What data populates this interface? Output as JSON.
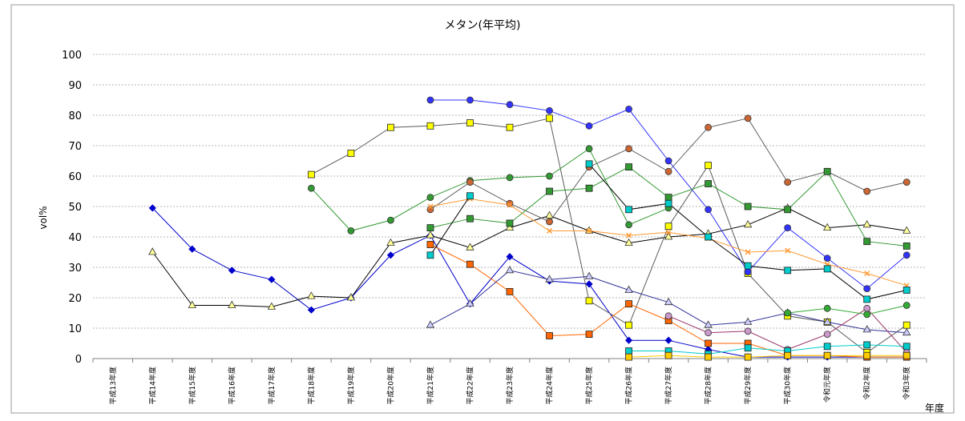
{
  "chart_data": {
    "type": "line",
    "title": "メタン(年平均)",
    "ylabel": "vol%",
    "xlabel": "年度",
    "ylim": [
      0,
      100
    ],
    "yticks": [
      0,
      10,
      20,
      30,
      40,
      50,
      60,
      70,
      80,
      90,
      100
    ],
    "grid": true,
    "categories": [
      "平成13年度",
      "平成14年度",
      "平成15年度",
      "平成16年度",
      "平成17年度",
      "平成18年度",
      "平成19年度",
      "平成20年度",
      "平成21年度",
      "平成22年度",
      "平成23年度",
      "平成24年度",
      "平成25年度",
      "平成26年度",
      "平成27年度",
      "平成28年度",
      "平成29年度",
      "平成30年度",
      "令和元年度",
      "令和2年度",
      "令和3年度"
    ],
    "series": [
      {
        "color": "#0000cc",
        "marker": "diamond",
        "fill": "#0000cc",
        "values": [
          null,
          49.5,
          36,
          29,
          26,
          16,
          20,
          34,
          40.5,
          18,
          33.5,
          25.5,
          24.5,
          6,
          6,
          3,
          0.5,
          0.5,
          0.5,
          0.5,
          0.5
        ]
      },
      {
        "color": "#000000",
        "marker": "triangle",
        "fill": "#ffff99",
        "values": [
          null,
          35,
          17.5,
          17.5,
          17,
          20.5,
          20,
          38,
          40.5,
          36.5,
          43,
          47,
          42,
          38,
          40,
          41,
          44,
          49.5,
          43,
          44,
          42
        ]
      },
      {
        "color": "#5a5a5a",
        "marker": "square",
        "fill": "#ffff00",
        "values": [
          null,
          null,
          null,
          null,
          null,
          60.5,
          67.5,
          76,
          76.5,
          77.5,
          76,
          79,
          19,
          11,
          43.5,
          63.5,
          28,
          14,
          12,
          2,
          11
        ]
      },
      {
        "color": "#339933",
        "marker": "circle",
        "fill": "#339933",
        "values": [
          null,
          null,
          null,
          null,
          null,
          56,
          42,
          45.5,
          53,
          58.5,
          59.5,
          60,
          69,
          44,
          49.5,
          null,
          null,
          null,
          null,
          null,
          null
        ]
      },
      {
        "color": "#3333ff",
        "marker": "circle",
        "fill": "#3333ff",
        "values": [
          null,
          null,
          null,
          null,
          null,
          null,
          null,
          null,
          85,
          85,
          83.5,
          81.5,
          76.5,
          82,
          65,
          49,
          28.5,
          43,
          33,
          23,
          34
        ]
      },
      {
        "color": "#606060",
        "marker": "circle",
        "fill": "#cc6633",
        "values": [
          null,
          null,
          null,
          null,
          null,
          null,
          null,
          null,
          49,
          58,
          51,
          45,
          63,
          69,
          61.5,
          76,
          79,
          58,
          61.5,
          55,
          58
        ]
      },
      {
        "color": "#ff6600",
        "marker": "square",
        "fill": "#ff6600",
        "values": [
          null,
          null,
          null,
          null,
          null,
          null,
          null,
          null,
          37.5,
          31,
          22,
          7.5,
          8,
          18,
          12.5,
          5,
          5,
          1,
          1,
          0.5,
          0.5
        ]
      },
      {
        "color": "#ff9933",
        "marker": "x",
        "fill": "#ff9933",
        "values": [
          null,
          null,
          null,
          null,
          null,
          null,
          null,
          null,
          50,
          52.5,
          50.5,
          42,
          42,
          40.5,
          41.5,
          39.5,
          35,
          35.5,
          31,
          28,
          24
        ]
      },
      {
        "color": "#339933",
        "marker": "square",
        "fill": "#339933",
        "values": [
          null,
          null,
          null,
          null,
          null,
          null,
          null,
          null,
          43,
          46,
          44.5,
          55,
          56,
          63,
          53,
          57.5,
          50,
          49,
          61.5,
          38.5,
          37
        ]
      },
      {
        "color": "#000000",
        "marker": "square",
        "fill": "#00cccc",
        "values": [
          null,
          null,
          null,
          null,
          null,
          null,
          null,
          null,
          34,
          53.5,
          null,
          null,
          64,
          49,
          51,
          40,
          30.5,
          29,
          29.5,
          19.5,
          22.5
        ]
      },
      {
        "color": "#333399",
        "marker": "triangle",
        "fill": "#ccccff",
        "values": [
          null,
          null,
          null,
          null,
          null,
          null,
          null,
          null,
          11,
          18,
          29,
          26,
          27,
          22.5,
          18.5,
          11,
          12,
          15,
          12,
          9.5,
          8.5
        ]
      },
      {
        "color": "#993366",
        "marker": "circle",
        "fill": "#cc99cc",
        "values": [
          null,
          null,
          null,
          null,
          null,
          null,
          null,
          null,
          null,
          null,
          null,
          null,
          null,
          null,
          14,
          8.5,
          9,
          3,
          8,
          16.5,
          2
        ]
      },
      {
        "color": "#33aa33",
        "marker": "circle",
        "fill": "#33aa33",
        "values": [
          null,
          null,
          null,
          null,
          null,
          null,
          null,
          null,
          null,
          null,
          null,
          null,
          null,
          null,
          null,
          null,
          null,
          15,
          16.5,
          14.5,
          17.5
        ]
      },
      {
        "color": "#00cccc",
        "marker": "square",
        "fill": "#00cccc",
        "values": [
          null,
          null,
          null,
          null,
          null,
          null,
          null,
          null,
          null,
          null,
          null,
          null,
          null,
          2.5,
          2.5,
          1.5,
          3.5,
          2.5,
          4,
          4.5,
          4
        ]
      },
      {
        "color": "#ffcc00",
        "marker": "square",
        "fill": "#ffcc00",
        "values": [
          null,
          null,
          null,
          null,
          null,
          null,
          null,
          null,
          null,
          null,
          null,
          null,
          null,
          0.5,
          1,
          0.5,
          0.5,
          1,
          1,
          1,
          1
        ]
      }
    ]
  }
}
